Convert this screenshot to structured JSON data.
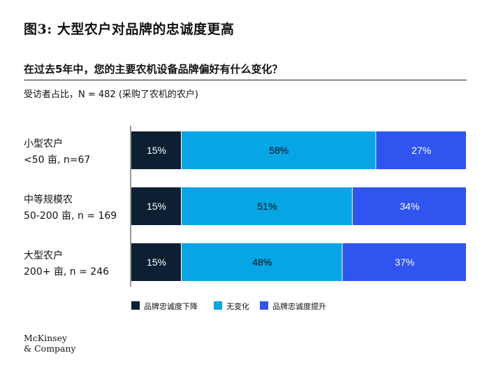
{
  "header": {
    "title": "图3: 大型农户对品牌的忠诚度更高",
    "question": "在过去5年中，您的主要农机设备品牌偏好有什么变化？",
    "subtitle": "受访者占比，N = 482 (采购了农机的农户)"
  },
  "logo": {
    "line1": "McKinsey",
    "line2": "& Company"
  },
  "chart_data": {
    "type": "bar",
    "orientation": "horizontal-stacked-100",
    "categories": [
      {
        "line1": "小型农户",
        "line2": "<50 亩, n=67"
      },
      {
        "line1": "中等规模农",
        "line2": "50-200 亩, n = 169"
      },
      {
        "line1": "大型农户",
        "line2": "200+ 亩, n = 246"
      }
    ],
    "series": [
      {
        "name": "品牌忠诚度下降",
        "color": "#0d1f33",
        "values": [
          15,
          15,
          15
        ],
        "labels": [
          "15%",
          "15%",
          "15%"
        ]
      },
      {
        "name": "无变化",
        "color": "#06a6e4",
        "values": [
          58,
          51,
          48
        ],
        "labels": [
          "58%",
          "51%",
          "48%"
        ]
      },
      {
        "name": "品牌忠诚度提升",
        "color": "#2f54f0",
        "values": [
          27,
          34,
          37
        ],
        "labels": [
          "27%",
          "34%",
          "37%"
        ]
      }
    ],
    "xlim": [
      0,
      100
    ],
    "legend_position": "bottom-center",
    "grid": false
  }
}
